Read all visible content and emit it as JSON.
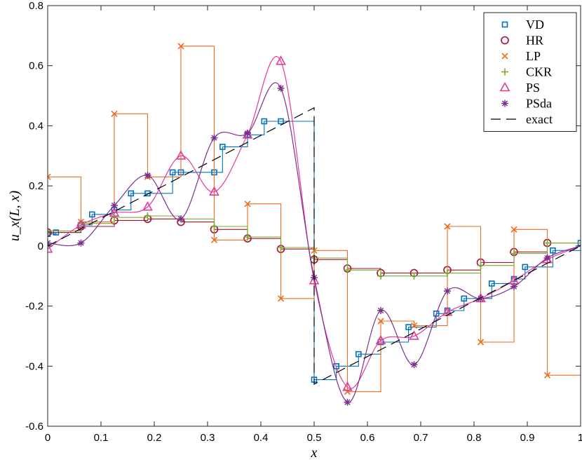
{
  "chart_data": {
    "type": "line",
    "title": "",
    "xlabel": "x",
    "ylabel": "u_x(L, x)",
    "xlim": [
      0,
      1
    ],
    "ylim": [
      -0.6,
      0.8
    ],
    "xticks": [
      0,
      0.1,
      0.2,
      0.3,
      0.4,
      0.5,
      0.6,
      0.7,
      0.8,
      0.9,
      1
    ],
    "xtick_labels": [
      "0",
      "0.1",
      "0.2",
      "0.3",
      "0.4",
      "0.5",
      "0.6",
      "0.7",
      "0.8",
      "0.9",
      "1"
    ],
    "yticks": [
      -0.6,
      -0.4,
      -0.2,
      0,
      0.2,
      0.4,
      0.6,
      0.8
    ],
    "ytick_labels": [
      "-0.6",
      "-0.4",
      "-0.2",
      "0",
      "0.2",
      "0.4",
      "0.6",
      "0.8"
    ],
    "grid": false,
    "legend_position": "top-right",
    "series": [
      {
        "name": "VD",
        "color": "#0072BD",
        "marker": "square",
        "style": "stairs",
        "x": [
          0.0,
          0.0156,
          0.0625,
          0.0833,
          0.125,
          0.1563,
          0.1875,
          0.2344,
          0.25,
          0.3125,
          0.3281,
          0.375,
          0.4063,
          0.4375,
          0.5,
          0.5417,
          0.5833,
          0.625,
          0.6771,
          0.7292,
          0.75,
          0.7813,
          0.8333,
          0.875,
          0.8958,
          0.9479,
          1.0
        ],
        "y": [
          0.04,
          0.045,
          0.07,
          0.105,
          0.12,
          0.175,
          0.175,
          0.245,
          0.245,
          0.245,
          0.33,
          0.37,
          0.415,
          0.415,
          -0.445,
          -0.4,
          -0.36,
          -0.32,
          -0.27,
          -0.225,
          -0.215,
          -0.175,
          -0.125,
          -0.11,
          -0.07,
          -0.015,
          0.01
        ]
      },
      {
        "name": "HR",
        "color": "#A2142F",
        "marker": "circle",
        "style": "stairs",
        "x": [
          0.0,
          0.0625,
          0.125,
          0.1875,
          0.25,
          0.3125,
          0.375,
          0.4375,
          0.5,
          0.5625,
          0.625,
          0.6875,
          0.75,
          0.8125,
          0.875,
          0.9375
        ],
        "y": [
          0.045,
          0.065,
          0.085,
          0.09,
          0.08,
          0.055,
          0.025,
          -0.01,
          -0.045,
          -0.075,
          -0.09,
          -0.09,
          -0.08,
          -0.055,
          -0.02,
          0.01
        ]
      },
      {
        "name": "LP",
        "color": "#EE6B1F",
        "marker": "x",
        "style": "stairs",
        "x": [
          0.0,
          0.0625,
          0.125,
          0.1875,
          0.25,
          0.3125,
          0.375,
          0.4375,
          0.5,
          0.5625,
          0.625,
          0.6875,
          0.75,
          0.8125,
          0.875,
          0.9375
        ],
        "y": [
          0.23,
          0.08,
          0.44,
          0.23,
          0.665,
          0.02,
          0.14,
          -0.175,
          -0.015,
          -0.485,
          -0.25,
          -0.265,
          0.065,
          -0.32,
          0.055,
          -0.43
        ]
      },
      {
        "name": "CKR",
        "color": "#77AC30",
        "marker": "plus",
        "style": "stairs",
        "x": [
          0.0,
          0.0625,
          0.125,
          0.1875,
          0.25,
          0.3125,
          0.375,
          0.4375,
          0.5,
          0.5625,
          0.625,
          0.6875,
          0.75,
          0.8125,
          0.875,
          0.9375
        ],
        "y": [
          0.05,
          0.075,
          0.095,
          0.1,
          0.09,
          0.065,
          0.03,
          -0.005,
          -0.04,
          -0.08,
          -0.1,
          -0.1,
          -0.09,
          -0.065,
          -0.025,
          0.01
        ]
      },
      {
        "name": "PS",
        "color": "#E6399B",
        "marker": "triangle",
        "style": "smooth",
        "x": [
          0.0,
          0.0625,
          0.125,
          0.1875,
          0.25,
          0.3125,
          0.375,
          0.4375,
          0.5,
          0.5625,
          0.625,
          0.6875,
          0.75,
          0.8125,
          0.875,
          0.9375
        ],
        "y": [
          -0.01,
          0.07,
          0.11,
          0.13,
          0.3,
          0.18,
          0.37,
          0.615,
          -0.115,
          -0.47,
          -0.315,
          -0.3,
          -0.22,
          -0.175,
          -0.115,
          -0.045
        ]
      },
      {
        "name": "PSda",
        "color": "#7E2F8E",
        "marker": "star",
        "style": "smooth",
        "x": [
          0.0,
          0.0625,
          0.125,
          0.1875,
          0.25,
          0.3125,
          0.375,
          0.4375,
          0.5,
          0.5625,
          0.625,
          0.6875,
          0.75,
          0.8125,
          0.875,
          0.9375
        ],
        "y": [
          0.01,
          0.01,
          0.135,
          0.235,
          0.09,
          0.36,
          0.375,
          0.525,
          -0.105,
          -0.52,
          -0.215,
          -0.395,
          -0.15,
          -0.175,
          -0.135,
          -0.04
        ]
      },
      {
        "name": "exact",
        "color": "#000000",
        "marker": "none",
        "style": "dashed",
        "x": [
          0.0,
          0.5,
          0.5,
          1.0
        ],
        "y": [
          0.0,
          0.46,
          -0.46,
          0.0
        ]
      }
    ]
  }
}
